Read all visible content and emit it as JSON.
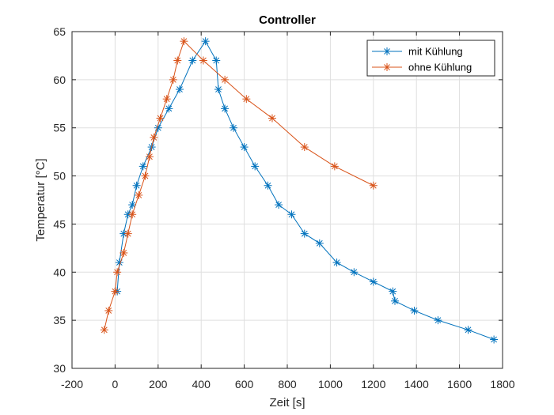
{
  "chart_data": {
    "type": "line",
    "title": "Controller",
    "xlabel": "Zeit [s]",
    "ylabel": "Temperatur [°C]",
    "xlim": [
      -200,
      1800
    ],
    "ylim": [
      30,
      65
    ],
    "xticks": [
      -200,
      0,
      200,
      400,
      600,
      800,
      1000,
      1200,
      1400,
      1600,
      1800
    ],
    "yticks": [
      30,
      35,
      40,
      45,
      50,
      55,
      60,
      65
    ],
    "grid": true,
    "legend_position": "top-right",
    "series": [
      {
        "name": "mit Kühlung",
        "color": "#0072BD",
        "marker": "asterisk",
        "x": [
          10,
          20,
          40,
          60,
          80,
          100,
          130,
          170,
          200,
          250,
          300,
          360,
          420,
          470,
          480,
          510,
          550,
          600,
          650,
          710,
          760,
          820,
          880,
          950,
          1030,
          1110,
          1200,
          1290,
          1300,
          1390,
          1500,
          1640,
          1760
        ],
        "y": [
          38,
          41,
          44,
          46,
          47,
          49,
          51,
          53,
          55,
          57,
          59,
          62,
          64,
          62,
          59,
          57,
          55,
          53,
          51,
          49,
          47,
          46,
          44,
          43,
          41,
          40,
          39,
          38,
          37,
          36,
          35,
          34,
          33
        ]
      },
      {
        "name": "ohne Kühlung",
        "color": "#D95319",
        "marker": "asterisk",
        "x": [
          -50,
          -30,
          0,
          10,
          40,
          60,
          80,
          110,
          140,
          160,
          180,
          210,
          240,
          270,
          290,
          320,
          410,
          510,
          610,
          730,
          880,
          1020,
          1200
        ],
        "y": [
          34,
          36,
          38,
          40,
          42,
          44,
          46,
          48,
          50,
          52,
          54,
          56,
          58,
          60,
          62,
          64,
          62,
          60,
          58,
          56,
          53,
          51,
          49
        ]
      }
    ]
  }
}
